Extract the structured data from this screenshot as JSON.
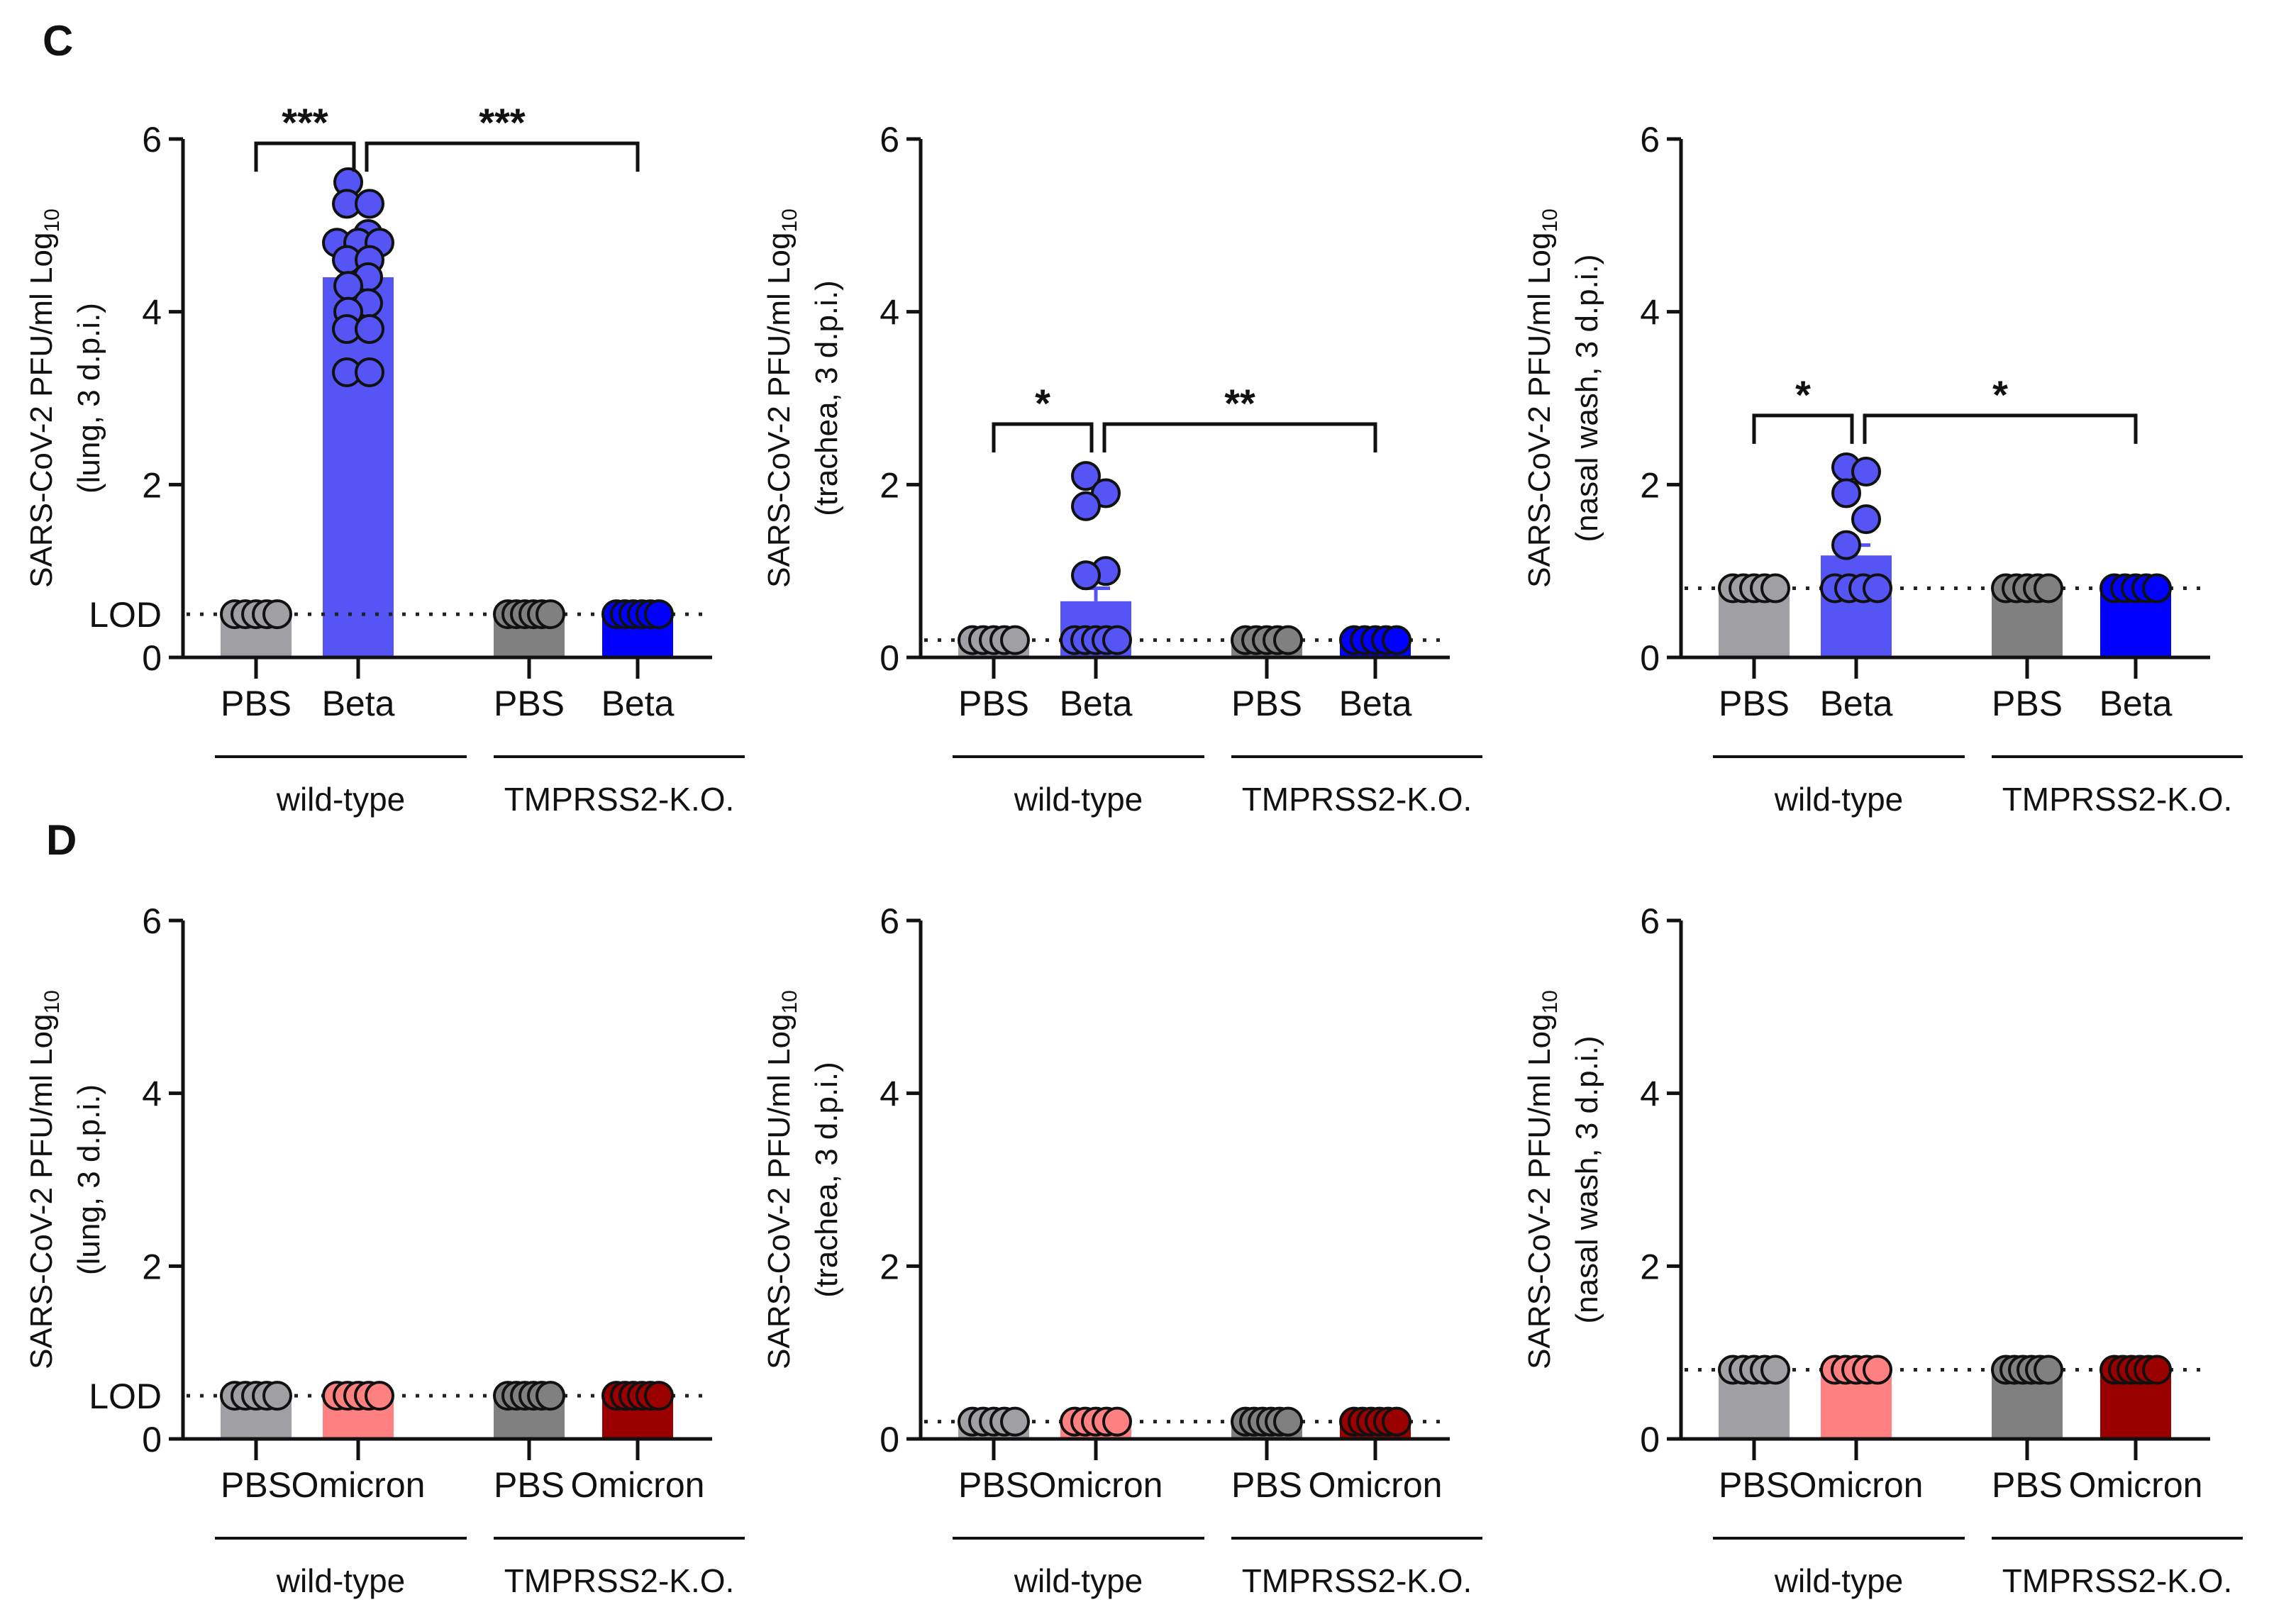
{
  "panel_letters": [
    "C",
    "D"
  ],
  "chart_data": [
    {
      "type": "bar",
      "panel": "C",
      "tissue": "lung",
      "ylabel": "SARS-CoV-2 PFU/ml Log",
      "ylabel_sub": "10",
      "ylabel2": "(lung, 3 d.p.i.)",
      "ylim": [
        0,
        6
      ],
      "yticks": [
        0,
        2,
        4,
        6
      ],
      "lod": 0.5,
      "lod_label": "LOD",
      "categories": [
        "PBS",
        "Beta",
        "PBS",
        "Beta"
      ],
      "groups": [
        {
          "label": "wild-type"
        },
        {
          "label": "TMPRSS2-K.O."
        }
      ],
      "values": [
        0.5,
        4.4,
        0.5,
        0.5
      ],
      "sem": [
        0,
        0.15,
        0,
        0
      ],
      "colors": [
        "#a0a0a4",
        "#5555f5",
        "#808080",
        "#0000ff"
      ],
      "points": [
        [
          0.5,
          0.5,
          0.5,
          0.5,
          0.5
        ],
        [
          5.5,
          5.25,
          5.25,
          4.9,
          4.8,
          4.8,
          4.8,
          4.6,
          4.6,
          4.4,
          4.3,
          4.1,
          4.0,
          3.8,
          3.8,
          3.3,
          3.3
        ],
        [
          0.5,
          0.5,
          0.5,
          0.5,
          0.5,
          0.5
        ],
        [
          0.5,
          0.5,
          0.5,
          0.5,
          0.5,
          0.5
        ]
      ],
      "significance": [
        {
          "from": 0,
          "to": 1,
          "label": "***",
          "level": 5.95
        },
        {
          "from": 1,
          "to": 3,
          "label": "***",
          "level": 5.95
        }
      ]
    },
    {
      "type": "bar",
      "panel": "C",
      "tissue": "trachea",
      "ylabel": "SARS-CoV-2 PFU/ml Log",
      "ylabel_sub": "10",
      "ylabel2": "(trachea, 3 d.p.i.)",
      "ylim": [
        0,
        6
      ],
      "yticks": [
        0,
        2,
        4,
        6
      ],
      "lod": 0.2,
      "categories": [
        "PBS",
        "Beta",
        "PBS",
        "Beta"
      ],
      "groups": [
        {
          "label": "wild-type"
        },
        {
          "label": "TMPRSS2-K.O."
        }
      ],
      "values": [
        0.2,
        0.65,
        0.2,
        0.2
      ],
      "sem": [
        0,
        0.15,
        0,
        0
      ],
      "colors": [
        "#a0a0a4",
        "#5555f5",
        "#808080",
        "#0000ff"
      ],
      "points": [
        [
          0.2,
          0.2,
          0.2,
          0.2,
          0.2
        ],
        [
          2.1,
          1.9,
          1.75,
          1.0,
          0.95,
          0.2,
          0.2,
          0.2,
          0.2,
          0.2
        ],
        [
          0.2,
          0.2,
          0.2,
          0.2,
          0.2
        ],
        [
          0.2,
          0.2,
          0.2,
          0.2,
          0.2
        ]
      ],
      "significance": [
        {
          "from": 0,
          "to": 1,
          "label": "*",
          "level": 2.7
        },
        {
          "from": 1,
          "to": 3,
          "label": "**",
          "level": 2.7
        }
      ]
    },
    {
      "type": "bar",
      "panel": "C",
      "tissue": "nasal wash",
      "ylabel": "SARS-CoV-2 PFU/ml Log",
      "ylabel_sub": "10",
      "ylabel2": "(nasal wash, 3 d.p.i.)",
      "ylim": [
        0,
        6
      ],
      "yticks": [
        0,
        2,
        4,
        6
      ],
      "lod": 0.8,
      "categories": [
        "PBS",
        "Beta",
        "PBS",
        "Beta"
      ],
      "groups": [
        {
          "label": "wild-type"
        },
        {
          "label": "TMPRSS2-K.O."
        }
      ],
      "values": [
        0.8,
        1.18,
        0.8,
        0.8
      ],
      "sem": [
        0,
        0.12,
        0,
        0
      ],
      "colors": [
        "#a0a0a4",
        "#5555f5",
        "#808080",
        "#0000ff"
      ],
      "points": [
        [
          0.8,
          0.8,
          0.8,
          0.8,
          0.8
        ],
        [
          2.2,
          2.15,
          1.9,
          1.6,
          1.3,
          0.8,
          0.8,
          0.8,
          0.8
        ],
        [
          0.8,
          0.8,
          0.8,
          0.8,
          0.8
        ],
        [
          0.8,
          0.8,
          0.8,
          0.8,
          0.8
        ]
      ],
      "significance": [
        {
          "from": 0,
          "to": 1,
          "label": "*",
          "level": 2.8
        },
        {
          "from": 1,
          "to": 3,
          "label": "*",
          "level": 2.8
        }
      ]
    },
    {
      "type": "bar",
      "panel": "D",
      "tissue": "lung",
      "ylabel": "SARS-CoV-2 PFU/ml Log",
      "ylabel_sub": "10",
      "ylabel2": "(lung, 3 d.p.i.)",
      "ylim": [
        0,
        6
      ],
      "yticks": [
        0,
        2,
        4,
        6
      ],
      "lod": 0.5,
      "lod_label": "LOD",
      "categories": [
        "PBS",
        "Omicron",
        "PBS",
        "Omicron"
      ],
      "groups": [
        {
          "label": "wild-type"
        },
        {
          "label": "TMPRSS2-K.O."
        }
      ],
      "values": [
        0.5,
        0.5,
        0.5,
        0.5
      ],
      "sem": [
        0,
        0,
        0,
        0
      ],
      "colors": [
        "#a0a0a4",
        "#ff8080",
        "#808080",
        "#9b0000"
      ],
      "points": [
        [
          0.5,
          0.5,
          0.5,
          0.5,
          0.5
        ],
        [
          0.5,
          0.5,
          0.5,
          0.5,
          0.5
        ],
        [
          0.5,
          0.5,
          0.5,
          0.5,
          0.5,
          0.5
        ],
        [
          0.5,
          0.5,
          0.5,
          0.5,
          0.5,
          0.5
        ]
      ],
      "significance": []
    },
    {
      "type": "bar",
      "panel": "D",
      "tissue": "trachea",
      "ylabel": "SARS-CoV-2 PFU/ml Log",
      "ylabel_sub": "10",
      "ylabel2": "(trachea, 3 d.p.i.)",
      "ylim": [
        0,
        6
      ],
      "yticks": [
        0,
        2,
        4,
        6
      ],
      "lod": 0.2,
      "categories": [
        "PBS",
        "Omicron",
        "PBS",
        "Omicron"
      ],
      "groups": [
        {
          "label": "wild-type"
        },
        {
          "label": "TMPRSS2-K.O."
        }
      ],
      "values": [
        0.2,
        0.2,
        0.2,
        0.2
      ],
      "sem": [
        0,
        0,
        0,
        0
      ],
      "colors": [
        "#a0a0a4",
        "#ff8080",
        "#808080",
        "#9b0000"
      ],
      "points": [
        [
          0.2,
          0.2,
          0.2,
          0.2,
          0.2
        ],
        [
          0.2,
          0.2,
          0.2,
          0.2,
          0.2
        ],
        [
          0.2,
          0.2,
          0.2,
          0.2,
          0.2,
          0.2
        ],
        [
          0.2,
          0.2,
          0.2,
          0.2,
          0.2,
          0.2
        ]
      ],
      "significance": []
    },
    {
      "type": "bar",
      "panel": "D",
      "tissue": "nasal wash",
      "ylabel": "SARS-CoV-2 PFU/ml Log",
      "ylabel_sub": "10",
      "ylabel2": "(nasal wash, 3 d.p.i.)",
      "ylim": [
        0,
        6
      ],
      "yticks": [
        0,
        2,
        4,
        6
      ],
      "lod": 0.8,
      "categories": [
        "PBS",
        "Omicron",
        "PBS",
        "Omicron"
      ],
      "groups": [
        {
          "label": "wild-type"
        },
        {
          "label": "TMPRSS2-K.O."
        }
      ],
      "values": [
        0.8,
        0.8,
        0.8,
        0.8
      ],
      "sem": [
        0,
        0,
        0,
        0
      ],
      "colors": [
        "#a0a0a4",
        "#ff8080",
        "#808080",
        "#9b0000"
      ],
      "points": [
        [
          0.8,
          0.8,
          0.8,
          0.8,
          0.8
        ],
        [
          0.8,
          0.8,
          0.8,
          0.8,
          0.8
        ],
        [
          0.8,
          0.8,
          0.8,
          0.8,
          0.8,
          0.8
        ],
        [
          0.8,
          0.8,
          0.8,
          0.8,
          0.8,
          0.8
        ]
      ],
      "significance": []
    }
  ]
}
